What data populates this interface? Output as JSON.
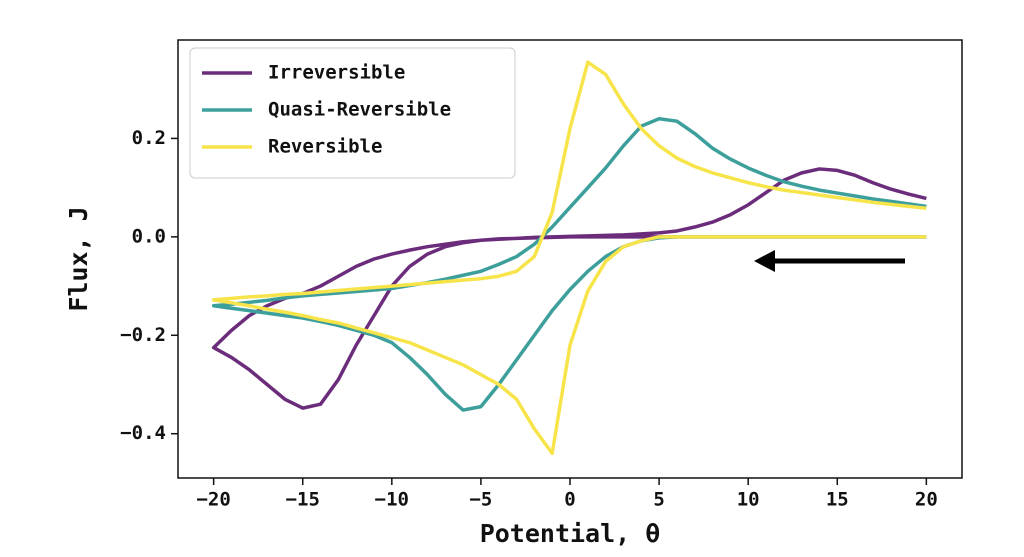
{
  "chart_data": {
    "type": "line",
    "xlabel": "Potential, θ",
    "ylabel": "Flux, J",
    "x": [
      20,
      19,
      18,
      17,
      16,
      15,
      14,
      13,
      12,
      11,
      10,
      9,
      8,
      7,
      6,
      5,
      4,
      3,
      2,
      1,
      0,
      -1,
      -2,
      -3,
      -4,
      -5,
      -6,
      -7,
      -8,
      -9,
      -10,
      -11,
      -12,
      -13,
      -14,
      -15,
      -16,
      -17,
      -18,
      -19,
      -20,
      -19,
      -18,
      -17,
      -16,
      -15,
      -14,
      -13,
      -12,
      -11,
      -10,
      -9,
      -8,
      -7,
      -6,
      -5,
      -4,
      -3,
      -2,
      -1,
      0,
      1,
      2,
      3,
      4,
      5,
      6,
      7,
      8,
      9,
      10,
      11,
      12,
      13,
      14,
      15,
      16,
      17,
      18,
      19,
      20
    ],
    "series": [
      {
        "name": "Irreversible",
        "color": "#6b2d7b",
        "values": [
          0,
          0,
          0,
          0,
          0,
          0,
          0,
          0,
          0,
          0,
          0,
          0,
          0,
          0,
          0,
          0,
          0,
          0,
          0,
          0,
          0,
          -0.001,
          -0.002,
          -0.003,
          -0.004,
          -0.007,
          -0.012,
          -0.02,
          -0.035,
          -0.06,
          -0.1,
          -0.16,
          -0.22,
          -0.29,
          -0.34,
          -0.348,
          -0.33,
          -0.3,
          -0.27,
          -0.245,
          -0.225,
          -0.19,
          -0.16,
          -0.14,
          -0.125,
          -0.115,
          -0.1,
          -0.08,
          -0.06,
          -0.045,
          -0.035,
          -0.027,
          -0.02,
          -0.015,
          -0.01,
          -0.007,
          -0.005,
          -0.003,
          -0.001,
          0,
          0.001,
          0.002,
          0.003,
          0.004,
          0.006,
          0.008,
          0.012,
          0.02,
          0.03,
          0.045,
          0.065,
          0.09,
          0.115,
          0.13,
          0.138,
          0.135,
          0.125,
          0.11,
          0.097,
          0.087,
          0.078
        ]
      },
      {
        "name": "Quasi-Reversible",
        "color": "#3d9f9b",
        "values": [
          0,
          0,
          0,
          0,
          0,
          0,
          0,
          0,
          0,
          0,
          0,
          0,
          0,
          0,
          0,
          -0.002,
          -0.008,
          -0.02,
          -0.04,
          -0.07,
          -0.107,
          -0.15,
          -0.2,
          -0.25,
          -0.3,
          -0.345,
          -0.352,
          -0.32,
          -0.28,
          -0.245,
          -0.215,
          -0.2,
          -0.19,
          -0.18,
          -0.172,
          -0.165,
          -0.16,
          -0.155,
          -0.15,
          -0.145,
          -0.14,
          -0.137,
          -0.133,
          -0.129,
          -0.124,
          -0.12,
          -0.117,
          -0.114,
          -0.111,
          -0.108,
          -0.105,
          -0.099,
          -0.093,
          -0.086,
          -0.078,
          -0.07,
          -0.056,
          -0.04,
          -0.015,
          0.02,
          0.06,
          0.1,
          0.14,
          0.185,
          0.225,
          0.24,
          0.235,
          0.21,
          0.18,
          0.158,
          0.14,
          0.125,
          0.112,
          0.103,
          0.095,
          0.089,
          0.083,
          0.077,
          0.072,
          0.067,
          0.062
        ]
      },
      {
        "name": "Reversible",
        "color": "#f7e44a",
        "values": [
          0,
          0,
          0,
          0,
          0,
          0,
          0,
          0,
          0,
          0,
          0,
          0,
          0,
          0,
          0,
          0,
          -0.008,
          -0.02,
          -0.05,
          -0.11,
          -0.22,
          -0.44,
          -0.39,
          -0.33,
          -0.3,
          -0.28,
          -0.26,
          -0.245,
          -0.23,
          -0.215,
          -0.205,
          -0.195,
          -0.185,
          -0.175,
          -0.168,
          -0.16,
          -0.153,
          -0.147,
          -0.14,
          -0.134,
          -0.128,
          -0.125,
          -0.122,
          -0.12,
          -0.117,
          -0.115,
          -0.112,
          -0.109,
          -0.106,
          -0.103,
          -0.1,
          -0.097,
          -0.094,
          -0.091,
          -0.088,
          -0.085,
          -0.08,
          -0.07,
          -0.04,
          0.05,
          0.22,
          0.355,
          0.33,
          0.27,
          0.22,
          0.185,
          0.16,
          0.143,
          0.13,
          0.12,
          0.11,
          0.102,
          0.095,
          0.09,
          0.085,
          0.08,
          0.075,
          0.07,
          0.066,
          0.062,
          0.058
        ]
      }
    ],
    "xlim": [
      -22,
      22
    ],
    "ylim": [
      -0.49,
      0.4
    ],
    "xticks": [
      {
        "value": -20,
        "label": "−20"
      },
      {
        "value": -15,
        "label": "−15"
      },
      {
        "value": -10,
        "label": "−10"
      },
      {
        "value": -5,
        "label": "−5"
      },
      0,
      5,
      10,
      15,
      20
    ],
    "yticks": [
      {
        "value": -0.4,
        "label": "−0.4"
      },
      {
        "value": -0.2,
        "label": "−0.2"
      },
      {
        "value": 0,
        "label": "0.0"
      },
      0.2
    ],
    "legend": "upper left"
  }
}
